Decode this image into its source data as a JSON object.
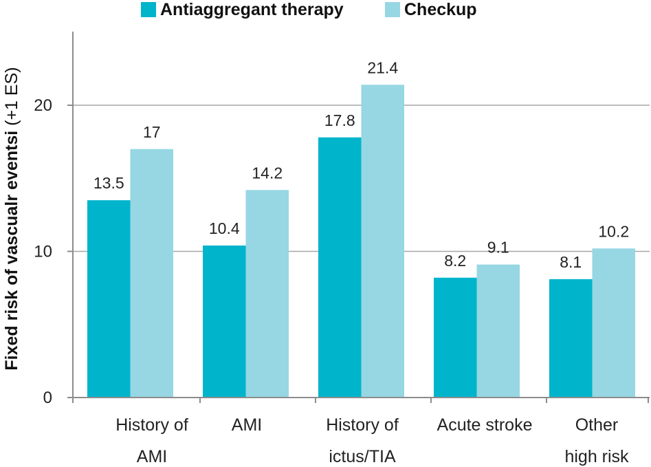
{
  "chart_data": {
    "type": "bar",
    "categories": [
      [
        "History of",
        "AMI"
      ],
      [
        "AMI"
      ],
      [
        "History of",
        "ictus/TIA"
      ],
      [
        "Acute stroke"
      ],
      [
        "Other",
        "high risk"
      ]
    ],
    "series": [
      {
        "name": "Antiaggregant therapy",
        "color": "#00b4cc",
        "values": [
          13.5,
          10.4,
          17.8,
          8.2,
          8.1
        ]
      },
      {
        "name": "Checkup",
        "color": "#96d7e3",
        "values": [
          17,
          14.2,
          21.4,
          9.1,
          10.2
        ]
      }
    ],
    "data_labels": [
      [
        "13.5",
        "10.4",
        "17.8",
        "8.2",
        "8.1"
      ],
      [
        "17",
        "14.2",
        "21.4",
        "9.1",
        "10.2"
      ]
    ],
    "ylabel_bold": "Fixed risk of vascualr eventsi",
    "ylabel_rest": " (+1 ES)",
    "yticks": [
      0,
      10,
      20
    ],
    "ylim": [
      0,
      25
    ],
    "grid": true,
    "legend_position": "top"
  }
}
